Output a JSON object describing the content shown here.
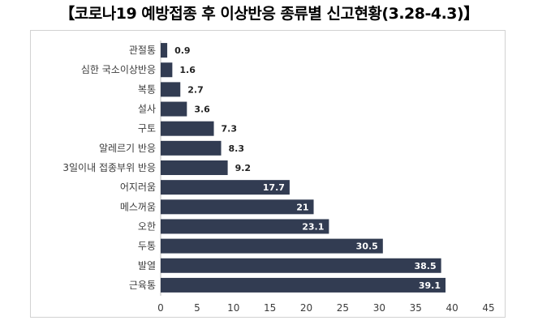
{
  "title": "【코로나19 예방접종 후 이상반응 종류별 신고현황(3.28-4.3)】",
  "colors": {
    "bar": "#323c52",
    "axis": "#bfbfbf"
  },
  "chart_data": {
    "type": "bar",
    "orientation": "horizontal",
    "title": "【코로나19 예방접종 후 이상반응 종류별 신고현황(3.28-4.3)】",
    "categories": [
      "관절통",
      "심한 국소이상반응",
      "복통",
      "설사",
      "구토",
      "알레르기 반응",
      "3일이내 접종부위 반응",
      "어지러움",
      "메스꺼움",
      "오한",
      "두통",
      "발열",
      "근육통"
    ],
    "values": [
      0.9,
      1.6,
      2.7,
      3.6,
      7.3,
      8.3,
      9.2,
      17.7,
      21,
      23.1,
      30.5,
      38.5,
      39.1
    ],
    "data_labels": [
      "0.9",
      "1.6",
      "2.7",
      "3.6",
      "7.3",
      "8.3",
      "9.2",
      "17.7",
      "21",
      "23.1",
      "30.5",
      "38.5",
      "39.1"
    ],
    "xlim": [
      0,
      45
    ],
    "xticks": [
      0,
      5,
      10,
      15,
      20,
      25,
      30,
      35,
      40,
      45
    ],
    "xlabel": "",
    "ylabel": "",
    "grid": false,
    "legend": "none"
  }
}
